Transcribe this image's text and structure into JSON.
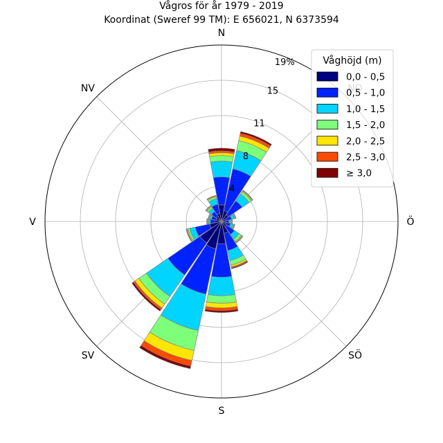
{
  "chart_data": {
    "type": "windrose",
    "title": "Vågros för år 1979 - 2019",
    "subtitle": "Koordinat (Sweref 99 TM): E 656021, N 6373594",
    "directions": [
      "N",
      "NO",
      "Ö",
      "SÖ",
      "S",
      "SV",
      "V",
      "NV"
    ],
    "radial_ticks": [
      "4",
      "8",
      "11",
      "15",
      "19%"
    ],
    "radial_tick_values": [
      3.8,
      7.6,
      11.4,
      15.2,
      19.0
    ],
    "rmax": 19.0,
    "legend_title": "Våghöjd (m)",
    "legend_position": "top-right",
    "bins": [
      "0,0 - 0,5",
      "0,5 - 1,0",
      "1,0 - 1,5",
      "1,5 - 2,0",
      "2,0 - 2,5",
      "2,5 - 3,0",
      "≥ 3,0"
    ],
    "colors": [
      "#000080",
      "#0022ff",
      "#00d4ff",
      "#7dff7a",
      "#ffe600",
      "#ff4a00",
      "#800000"
    ],
    "sector_angles": [
      0,
      22.5,
      45,
      67.5,
      90,
      112.5,
      135,
      157.5,
      180,
      202.5,
      225,
      247.5,
      270,
      292.5,
      315,
      337.5
    ],
    "sectors": [
      [
        1.8,
        3.0,
        1.7,
        0.6,
        0.3,
        0.2,
        0.3
      ],
      [
        1.2,
        4.6,
        2.0,
        1.1,
        0.5,
        0.3,
        0.2
      ],
      [
        0.9,
        1.8,
        0.9,
        0.3,
        0.1,
        0.05,
        0.05
      ],
      [
        0.5,
        0.6,
        0.3,
        0.1,
        0.05,
        0.03,
        0.02
      ],
      [
        0.4,
        0.4,
        0.2,
        0.1,
        0.05,
        0.02,
        0.01
      ],
      [
        0.5,
        0.5,
        0.3,
        0.1,
        0.05,
        0.02,
        0.01
      ],
      [
        0.7,
        1.0,
        0.6,
        0.3,
        0.1,
        0.05,
        0.05
      ],
      [
        1.3,
        1.9,
        1.1,
        0.5,
        0.2,
        0.1,
        0.1
      ],
      [
        2.4,
        3.6,
        2.0,
        0.8,
        0.5,
        0.3,
        0.2
      ],
      [
        3.0,
        5.0,
        4.0,
        2.2,
        1.1,
        0.6,
        0.3
      ],
      [
        2.8,
        4.2,
        2.8,
        1.0,
        0.5,
        0.2,
        0.2
      ],
      [
        1.3,
        1.6,
        0.6,
        0.2,
        0.1,
        0.05,
        0.05
      ],
      [
        0.7,
        0.5,
        0.2,
        0.1,
        0.05,
        0.03,
        0.02
      ],
      [
        0.6,
        0.5,
        0.2,
        0.1,
        0.05,
        0.02,
        0.01
      ],
      [
        0.7,
        0.6,
        0.4,
        0.2,
        0.1,
        0.05,
        0.03
      ],
      [
        0.9,
        1.0,
        0.6,
        0.2,
        0.1,
        0.05,
        0.03
      ]
    ]
  }
}
